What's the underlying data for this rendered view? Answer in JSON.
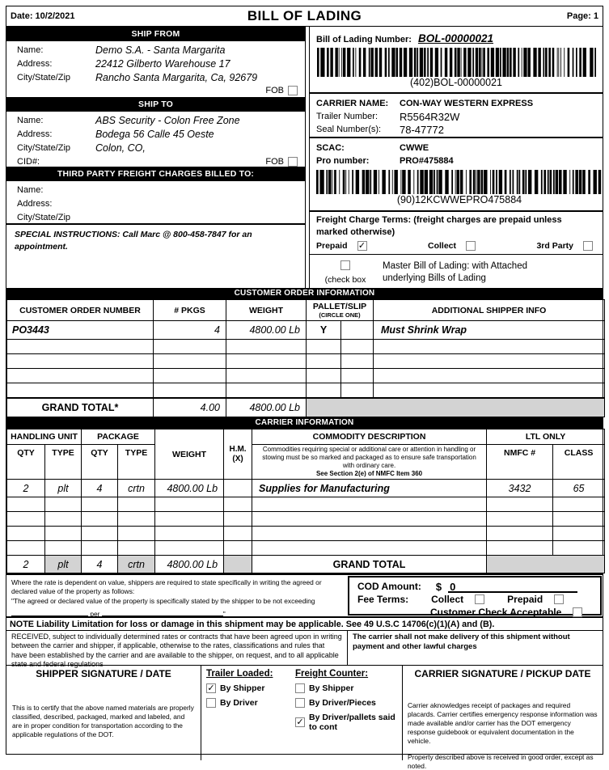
{
  "header": {
    "date": "Date: 10/2/2021",
    "title": "BILL OF LADING",
    "page": "Page: 1"
  },
  "ship_from": {
    "bar": "SHIP FROM",
    "name_label": "Name:",
    "name": "Demo S.A. - Santa Margarita",
    "address_label": "Address:",
    "address": "22412 Gilberto Warehouse 17",
    "csz_label": "City/State/Zip",
    "csz": "Rancho Santa Margarita, Ca, 92679",
    "fob_label": "FOB",
    "fob_checked": false
  },
  "ship_to": {
    "bar": "SHIP TO",
    "name_label": "Name:",
    "name": "ABS Security - Colon Free Zone",
    "address_label": "Address:",
    "address": "Bodega 56 Calle 45 Oeste",
    "csz_label": "City/State/Zip",
    "csz": "Colon, CO,",
    "cid_label": "CID#:",
    "fob_label": "FOB",
    "fob_checked": false
  },
  "third_party": {
    "bar": "THIRD PARTY FREIGHT CHARGES BILLED TO:",
    "name_label": "Name:",
    "address_label": "Address:",
    "csz_label": "City/State/Zip"
  },
  "special_instructions": "SPECIAL INSTRUCTIONS: Call Marc @ 800-458-7847 for an appointment.",
  "bol": {
    "label": "Bill of Lading Number:",
    "number": "BOL-00000021",
    "barcode_caption": "(402)BOL-00000021"
  },
  "carrier_header": {
    "name_label": "CARRIER NAME:",
    "name": "CON-WAY WESTERN EXPRESS",
    "trailer_label": "Trailer Number:",
    "trailer": "R5564R32W",
    "seal_label": "Seal Number(s):",
    "seal": "78-47772",
    "scac_label": "SCAC:",
    "scac": "CWWE",
    "pro_label": "Pro number:",
    "pro": "PRO#475884",
    "barcode_caption": "(90)12KCWWEPRO475884"
  },
  "freight_terms": {
    "title": "Freight Charge Terms: (freight charges are prepaid unless marked otherwise)",
    "options": [
      {
        "label": "Prepaid",
        "checked": true
      },
      {
        "label": "Collect",
        "checked": false
      },
      {
        "label": "3rd Party",
        "checked": false
      }
    ],
    "master_check_label": "(check box",
    "master_checked": false,
    "master_text": "Master Bill of Lading: with Attached underlying Bills of Lading"
  },
  "customer_order": {
    "bar": "CUSTOMER ORDER INFORMATION",
    "headers": {
      "order": "CUSTOMER ORDER NUMBER",
      "pkgs": "# PKGS",
      "weight": "WEIGHT",
      "pallet": "PALLET/SLIP",
      "circle": "(CIRCLE ONE)",
      "info": "ADDITIONAL SHIPPER INFO"
    },
    "row": {
      "order": "PO3443",
      "pkgs": "4",
      "weight": "4800.00 Lb",
      "pallet": "Y",
      "slip": "",
      "info": "Must Shrink Wrap"
    },
    "grand_total": {
      "label": "GRAND TOTAL*",
      "pkgs": "4.00",
      "weight": "4800.00 Lb"
    }
  },
  "carrier_info": {
    "bar": "CARRIER INFORMATION",
    "headers": {
      "handling": "HANDLING UNIT",
      "package": "PACKAGE",
      "qty": "QTY",
      "type": "TYPE",
      "weight": "WEIGHT",
      "hm1": "H.M.",
      "hm2": "(X)",
      "commodity": "COMMODITY DESCRIPTION",
      "note": "Commodities requiring special or additional care or attention in handling or stowing must be so marked and packaged as to ensure safe transportation with ordinary care.",
      "note_bold": "See Section 2(e) of NMFC Item 360",
      "ltl": "LTL ONLY",
      "nmfc": "NMFC #",
      "class": "CLASS"
    },
    "row": {
      "hu_qty": "2",
      "hu_type": "plt",
      "pkg_qty": "4",
      "pkg_type": "crtn",
      "weight": "4800.00 Lb",
      "hm": "",
      "desc": "Supplies for Manufacturing",
      "nmfc": "3432",
      "class": "65"
    },
    "grand_total": {
      "hu_qty": "2",
      "hu_type": "plt",
      "pkg_qty": "4",
      "pkg_type": "crtn",
      "weight": "4800.00 Lb",
      "label": "GRAND TOTAL"
    }
  },
  "valuation": {
    "line1": "Where the rate is dependent on value, shippers are required to state specifically in writing the agreed or declared value of the property as follows:",
    "line2": "\"The agreed or declared value of the property is specifically stated by the shipper to be not exceeding",
    "per": "per",
    "quote": "\""
  },
  "cod": {
    "amount_label": "COD Amount:",
    "currency": "$",
    "amount": "0",
    "fee_label": "Fee Terms:",
    "collect_label": "Collect",
    "collect_checked": false,
    "prepaid_label": "Prepaid",
    "prepaid_checked": false,
    "check_label": "Customer Check Acceptable",
    "check_checked": false
  },
  "liability_note": "NOTE Liability Limitation for loss or damage in this shipment may be applicable. See 49 U.S.C  14706(c)(1)(A) and (B).",
  "received_text": "RECEIVED, subject to individually determined rates or contracts that have been agreed upon in writing between the carrier and shipper, if applicable, otherwise to the rates, classifications and rules that have been established by the carrier and are available to the shipper, on request, and to all applicable state and federal regulations",
  "no_delivery_text": "The carrier shall not make delivery of this shipment without payment and other lawful charges",
  "shipper_sig": {
    "title": "SHIPPER SIGNATURE / DATE",
    "certify": "This is to certify that the above named materials are properly classified, described, packaged, marked and labeled, and are in proper condition for transportation according to the applicable regulations of the DOT."
  },
  "trailer_loaded": {
    "title": "Trailer Loaded:",
    "options": [
      {
        "label": "By Shipper",
        "checked": true
      },
      {
        "label": "By Driver",
        "checked": false
      }
    ]
  },
  "freight_counter": {
    "title": "Freight Counter:",
    "options": [
      {
        "label": "By Shipper",
        "checked": false
      },
      {
        "label": "By Driver/Pieces",
        "checked": false
      },
      {
        "label": "By Driver/pallets said to cont",
        "checked": true
      }
    ]
  },
  "carrier_sig": {
    "title": "CARRIER SIGNATURE / PICKUP DATE",
    "ack": "Carrier aknowledges receipt of packages and required placards. Carrier certifies emergency response information was made available and/or carrier has the DOT emergency response guidebook or equivalent documentation in the vehicle.",
    "property": "Property described above is received in good order, except as noted."
  }
}
